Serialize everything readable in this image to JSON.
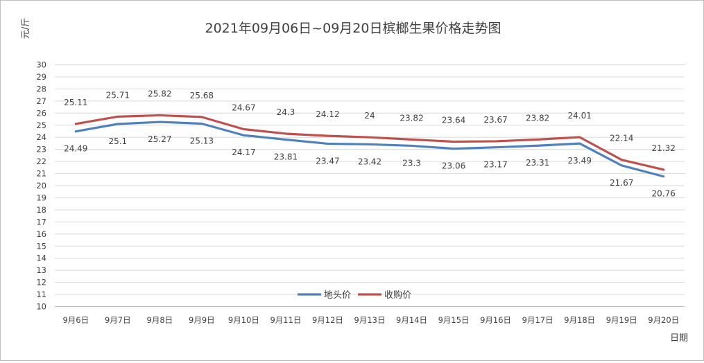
{
  "chart_data": {
    "type": "line",
    "title": "2021年09月06日~09月20日槟榔生果价格走势图",
    "xlabel": "日期",
    "ylabel": "元/斤",
    "ylim": [
      10,
      30
    ],
    "ytick_step": 1,
    "grid": true,
    "legend_position": "bottom-center",
    "categories": [
      "9月6日",
      "9月7日",
      "9月8日",
      "9月9日",
      "9月10日",
      "9月11日",
      "9月12日",
      "9月13日",
      "9月14日",
      "9月15日",
      "9月16日",
      "9月17日",
      "9月18日",
      "9月19日",
      "9月20日"
    ],
    "series": [
      {
        "name": "地头价",
        "color": "#4f81bd",
        "label_position": "below",
        "values": [
          24.49,
          25.1,
          25.27,
          25.13,
          24.17,
          23.81,
          23.47,
          23.42,
          23.3,
          23.06,
          23.17,
          23.31,
          23.49,
          21.67,
          20.76
        ]
      },
      {
        "name": "收购价",
        "color": "#c0504d",
        "label_position": "above",
        "values": [
          25.11,
          25.71,
          25.82,
          25.68,
          24.67,
          24.3,
          24.12,
          24,
          23.82,
          23.64,
          23.67,
          23.82,
          24.01,
          22.14,
          21.32
        ]
      }
    ]
  }
}
